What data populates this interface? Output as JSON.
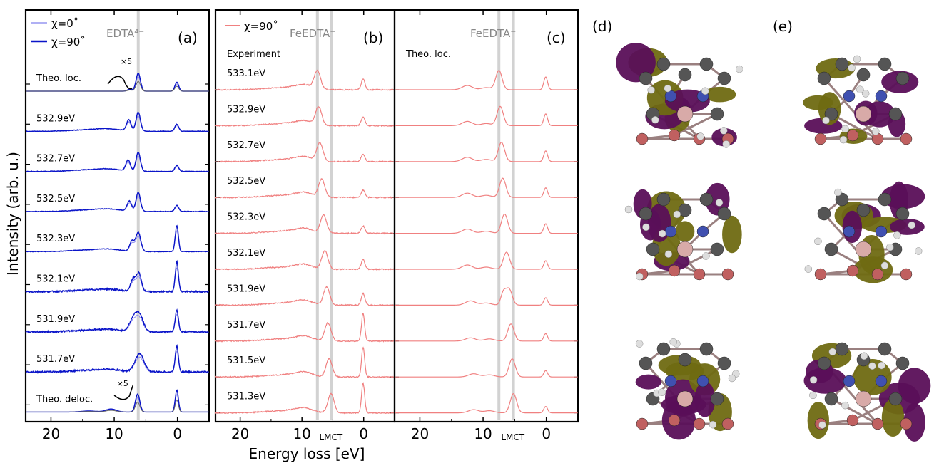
{
  "figure": {
    "y_axis_label": "Intensity (arb. u.)",
    "x_axis_label": "Energy loss [eV]",
    "lmct_label": "LMCT"
  },
  "chart_data": [
    {
      "type": "line",
      "panel": "(a)",
      "title": "EDTA⁴⁻",
      "legend": [
        {
          "name": "χ=0˚",
          "color": "#8080ee"
        },
        {
          "name": "χ=90˚",
          "color": "#0a14c8"
        }
      ],
      "xlim": [
        24,
        -5
      ],
      "xticks": [
        20,
        10,
        0
      ],
      "vline_x": 6.2,
      "scale_note": "×5",
      "rows": [
        "Theo. loc.",
        "532.9eV",
        "532.7eV",
        "532.5eV",
        "532.3eV",
        "532.1eV",
        "531.9eV",
        "531.7eV",
        "Theo. deloc."
      ],
      "series_color": "#0a14c8",
      "series_color_alt": "#8a8aee",
      "theory_color": "#666666",
      "peaks": [
        {
          "row": "Theo. loc.",
          "peaks": [
            [
              6.2,
              0.9,
              0.35
            ],
            [
              7.5,
              0.1,
              0.4
            ],
            [
              0.1,
              0.45,
              0.3
            ]
          ]
        },
        {
          "row": "532.9eV",
          "peaks": [
            [
              6.2,
              0.95,
              0.35
            ],
            [
              7.7,
              0.55,
              0.35
            ],
            [
              0.1,
              0.35,
              0.3
            ]
          ]
        },
        {
          "row": "532.7eV",
          "peaks": [
            [
              6.2,
              0.95,
              0.35
            ],
            [
              7.8,
              0.55,
              0.35
            ],
            [
              0.1,
              0.3,
              0.3
            ]
          ]
        },
        {
          "row": "532.5eV",
          "peaks": [
            [
              6.2,
              0.95,
              0.35
            ],
            [
              7.6,
              0.5,
              0.35
            ],
            [
              0.1,
              0.3,
              0.3
            ]
          ]
        },
        {
          "row": "532.3eV",
          "peaks": [
            [
              6.2,
              0.95,
              0.4
            ],
            [
              7.2,
              0.5,
              0.35
            ],
            [
              0.1,
              1.3,
              0.25
            ]
          ]
        },
        {
          "row": "532.1eV",
          "peaks": [
            [
              6.1,
              0.9,
              0.4
            ],
            [
              7.0,
              0.6,
              0.4
            ],
            [
              0.1,
              1.5,
              0.25
            ]
          ]
        },
        {
          "row": "531.9eV",
          "peaks": [
            [
              6.0,
              0.8,
              0.6
            ],
            [
              7.0,
              0.6,
              0.6
            ],
            [
              0.1,
              1.1,
              0.25
            ]
          ]
        },
        {
          "row": "531.7eV",
          "peaks": [
            [
              6.0,
              0.9,
              0.7
            ],
            [
              0.1,
              1.3,
              0.25
            ]
          ]
        },
        {
          "row": "Theo. deloc.",
          "peaks": [
            [
              6.3,
              0.9,
              0.35
            ],
            [
              0.1,
              1.1,
              0.25
            ],
            [
              10.5,
              0.15,
              0.8
            ],
            [
              14,
              0.05,
              1.2
            ]
          ]
        }
      ]
    },
    {
      "type": "line",
      "panel": "(b)",
      "title": "FeEDTA⁻",
      "legend": [
        {
          "name": "χ=90˚",
          "color": "#f08080"
        }
      ],
      "xlim": [
        24,
        -5
      ],
      "xticks": [
        20,
        10,
        0
      ],
      "vline_x": [
        7.5,
        5.2
      ],
      "rows": [
        "Experiment",
        "533.1eV",
        "532.9eV",
        "532.7eV",
        "532.5eV",
        "532.3eV",
        "532.1eV",
        "531.9eV",
        "531.7eV",
        "531.5eV",
        "531.3eV"
      ],
      "series_color": "#f08080",
      "peaks": [
        {
          "row": "533.1eV",
          "peaks": [
            [
              7.5,
              0.85,
              0.5
            ],
            [
              0.1,
              0.5,
              0.3
            ],
            [
              9.5,
              0.15,
              1.2
            ]
          ]
        },
        {
          "row": "532.9eV",
          "peaks": [
            [
              7.3,
              0.85,
              0.5
            ],
            [
              0.1,
              0.4,
              0.3
            ],
            [
              9.5,
              0.15,
              1.2
            ]
          ]
        },
        {
          "row": "532.7eV",
          "peaks": [
            [
              7.1,
              0.85,
              0.5
            ],
            [
              0.1,
              0.35,
              0.3
            ],
            [
              9.5,
              0.15,
              1.2
            ]
          ]
        },
        {
          "row": "532.5eV",
          "peaks": [
            [
              6.8,
              0.85,
              0.5
            ],
            [
              0.1,
              0.35,
              0.3
            ],
            [
              9.5,
              0.15,
              1.2
            ]
          ]
        },
        {
          "row": "532.3eV",
          "peaks": [
            [
              6.5,
              0.85,
              0.5
            ],
            [
              0.1,
              0.35,
              0.3
            ],
            [
              9.5,
              0.15,
              1.2
            ]
          ]
        },
        {
          "row": "532.1eV",
          "peaks": [
            [
              6.3,
              0.85,
              0.5
            ],
            [
              0.1,
              0.45,
              0.3
            ],
            [
              9.5,
              0.15,
              1.2
            ]
          ]
        },
        {
          "row": "531.9eV",
          "peaks": [
            [
              6.0,
              0.85,
              0.5
            ],
            [
              0.1,
              0.55,
              0.3
            ],
            [
              9.5,
              0.15,
              1.2
            ]
          ]
        },
        {
          "row": "531.7eV",
          "peaks": [
            [
              5.8,
              0.85,
              0.5
            ],
            [
              0.1,
              1.3,
              0.25
            ],
            [
              9.5,
              0.15,
              1.2
            ]
          ]
        },
        {
          "row": "531.5eV",
          "peaks": [
            [
              5.6,
              0.85,
              0.5
            ],
            [
              0.1,
              1.4,
              0.25
            ],
            [
              9.5,
              0.15,
              1.2
            ]
          ]
        },
        {
          "row": "531.3eV",
          "peaks": [
            [
              5.3,
              0.9,
              0.5
            ],
            [
              0.1,
              1.4,
              0.25
            ],
            [
              9.5,
              0.15,
              1.2
            ]
          ]
        }
      ]
    },
    {
      "type": "line",
      "panel": "(c)",
      "title": "FeEDTA⁻",
      "xlim": [
        24,
        -5
      ],
      "xticks": [
        20,
        10,
        0
      ],
      "vline_x": [
        7.5,
        5.2
      ],
      "rows": [
        "Theo. loc."
      ],
      "series_color": "#f08080",
      "peaks": [
        {
          "row": 1,
          "peaks": [
            [
              7.5,
              0.9,
              0.5
            ],
            [
              0.1,
              0.6,
              0.3
            ],
            [
              12.5,
              0.2,
              0.8
            ],
            [
              9.5,
              0.1,
              0.8
            ]
          ]
        },
        {
          "row": 2,
          "peaks": [
            [
              7.3,
              0.9,
              0.5
            ],
            [
              0.1,
              0.55,
              0.3
            ],
            [
              12.5,
              0.2,
              0.8
            ],
            [
              9.5,
              0.1,
              0.8
            ]
          ]
        },
        {
          "row": 3,
          "peaks": [
            [
              7.1,
              0.9,
              0.5
            ],
            [
              0.1,
              0.5,
              0.3
            ],
            [
              12.5,
              0.2,
              0.8
            ],
            [
              9.5,
              0.1,
              0.8
            ]
          ]
        },
        {
          "row": 4,
          "peaks": [
            [
              6.9,
              0.9,
              0.5
            ],
            [
              0.1,
              0.45,
              0.3
            ],
            [
              12.5,
              0.2,
              0.8
            ],
            [
              9.5,
              0.1,
              0.8
            ]
          ]
        },
        {
          "row": 5,
          "peaks": [
            [
              6.6,
              0.9,
              0.5
            ],
            [
              0.1,
              0.45,
              0.3
            ],
            [
              12.5,
              0.2,
              0.8
            ],
            [
              9.5,
              0.1,
              0.8
            ]
          ]
        },
        {
          "row": 6,
          "peaks": [
            [
              6.3,
              0.8,
              0.5
            ],
            [
              0.1,
              0.4,
              0.3
            ],
            [
              12.5,
              0.2,
              0.8
            ],
            [
              9.5,
              0.1,
              0.8
            ]
          ]
        },
        {
          "row": 7,
          "peaks": [
            [
              5.9,
              0.75,
              0.5
            ],
            [
              6.8,
              0.55,
              0.4
            ],
            [
              0.1,
              0.35,
              0.3
            ],
            [
              12.0,
              0.2,
              0.8
            ],
            [
              9.5,
              0.1,
              0.8
            ]
          ]
        },
        {
          "row": 8,
          "peaks": [
            [
              5.6,
              0.8,
              0.5
            ],
            [
              0.1,
              0.35,
              0.3
            ],
            [
              12.0,
              0.15,
              0.8
            ],
            [
              9.0,
              0.1,
              0.8
            ]
          ]
        },
        {
          "row": 9,
          "peaks": [
            [
              5.4,
              0.85,
              0.5
            ],
            [
              0.1,
              0.3,
              0.3
            ],
            [
              11.5,
              0.15,
              0.8
            ],
            [
              9.0,
              0.1,
              0.8
            ]
          ]
        },
        {
          "row": 10,
          "peaks": [
            [
              5.2,
              0.9,
              0.5
            ],
            [
              0.1,
              0.3,
              0.3
            ],
            [
              11.5,
              0.15,
              0.8
            ],
            [
              9.0,
              0.1,
              0.8
            ]
          ]
        }
      ]
    }
  ],
  "orbital_panels": [
    {
      "label": "(d)",
      "count": 3
    },
    {
      "label": "(e)",
      "count": 3
    }
  ],
  "colors": {
    "lobe_olive": "#6f6a12",
    "lobe_purple": "#5a0f58",
    "carbon": "#555555",
    "nitrogen": "#4050b0",
    "oxygen": "#c06060",
    "hydrogen": "#dddddd",
    "iron": "#d8aaa8",
    "vline": "#c8c8c8"
  }
}
